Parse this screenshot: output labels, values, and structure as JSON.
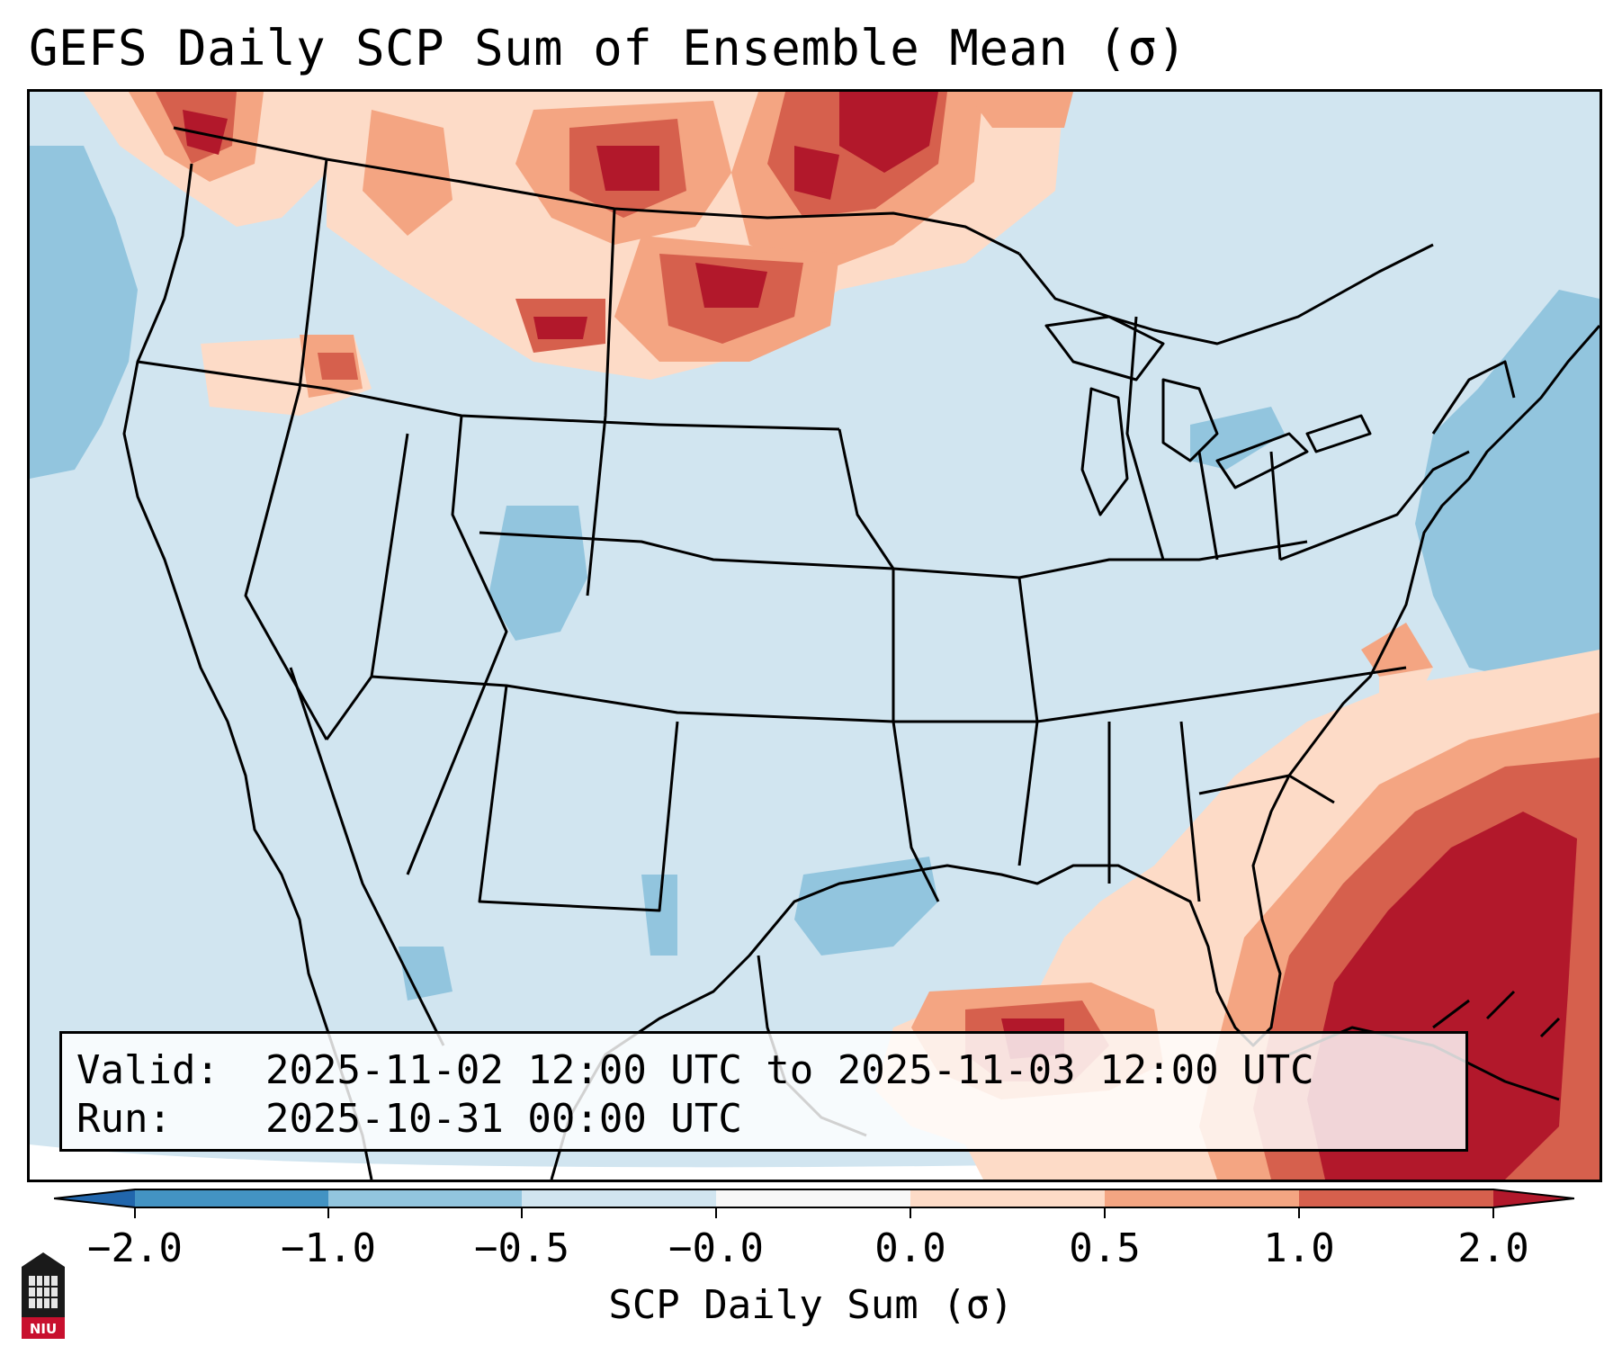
{
  "title": "GEFS Daily SCP Sum of Ensemble Mean (σ)",
  "map": {
    "description_region": "CONUS",
    "background_color": "#d1e5f0",
    "line_color": "#000000"
  },
  "info": {
    "valid_label": "Valid:",
    "valid_value": "2025-11-02 12:00 UTC to 2025-11-03 12:00 UTC",
    "run_label": "Run:",
    "run_value": "2025-10-31 00:00 UTC"
  },
  "colorbar": {
    "label": "SCP Daily Sum (σ)",
    "ticks": [
      "−2.0",
      "−1.0",
      "−0.5",
      "−0.0",
      "0.0",
      "0.5",
      "1.0",
      "2.0"
    ],
    "colors": {
      "under": "#2166ac",
      "bin1": "#4393c3",
      "bin2": "#92c5de",
      "bin3": "#d1e5f0",
      "bin4": "#f7f7f7",
      "bin5": "#fddbc7",
      "bin6": "#f4a582",
      "bin7": "#d6604d",
      "over": "#b2182b"
    }
  },
  "logo": {
    "text": "NIU",
    "icon": "niu-tower-icon"
  }
}
